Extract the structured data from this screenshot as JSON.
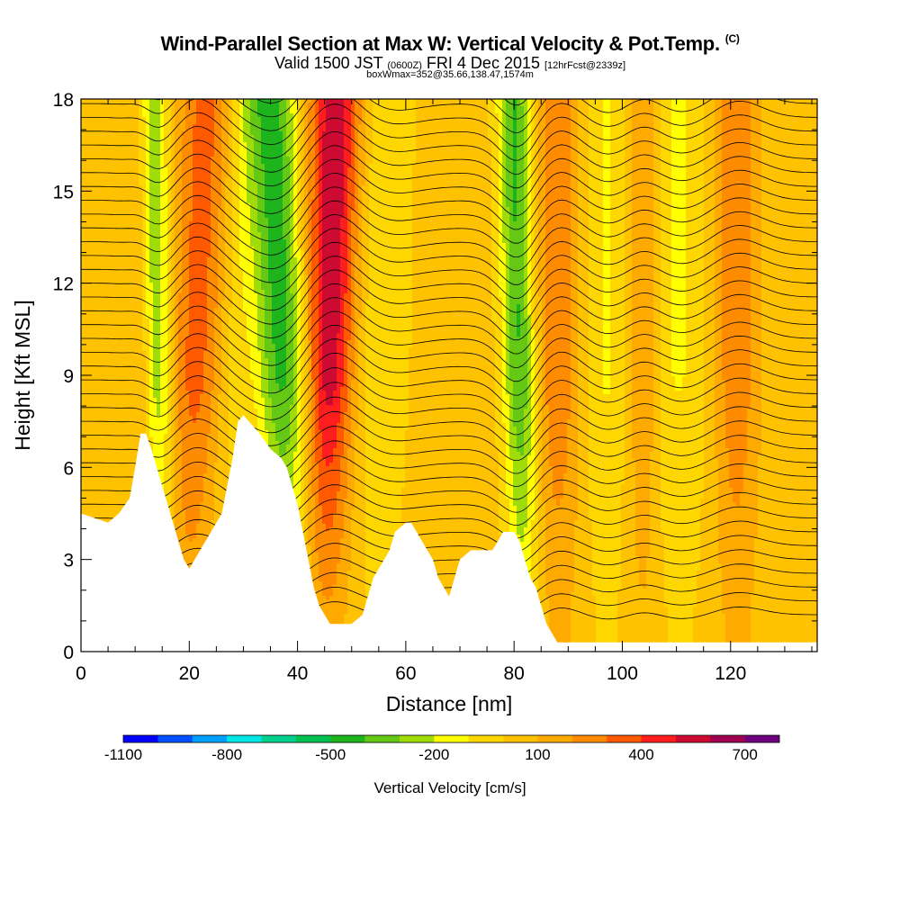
{
  "header": {
    "title_main": "Wind-Parallel Section at Max W: Vertical Velocity & Pot.Temp.",
    "title_copyright": "(C)",
    "valid_prefix": "Valid 1500 JST",
    "valid_utc": "(0600Z)",
    "valid_date": "FRI 4 Dec 2015",
    "forecast": "[12hrFcst@2339z]",
    "box_info": "boxWmax=352@35.66,138.47,1574m"
  },
  "chart_data": {
    "type": "heatmap",
    "title": "Wind-Parallel Section at Max W: Vertical Velocity & Pot.Temp.",
    "xlabel": "Distance [nm]",
    "ylabel": "Height [Kft MSL]",
    "xlim": [
      0,
      136
    ],
    "ylim": [
      0,
      18
    ],
    "x_ticks": [
      0,
      20,
      40,
      60,
      80,
      100,
      120
    ],
    "x_tick_labels": [
      "0",
      "20",
      "40",
      "60",
      "80",
      "100",
      "120"
    ],
    "y_ticks": [
      0,
      3,
      6,
      9,
      12,
      15,
      18
    ],
    "y_tick_labels": [
      "0",
      "3",
      "6",
      "9",
      "12",
      "15",
      "18"
    ],
    "terrain": {
      "description": "white terrain profile (height in Kft vs distance in nm)",
      "x": [
        0,
        5,
        7,
        9,
        10,
        11,
        12,
        13,
        14,
        15,
        16,
        17,
        18,
        19,
        20,
        21,
        22,
        23,
        24,
        25,
        26,
        27,
        28,
        29,
        30,
        31,
        33,
        35,
        37,
        38,
        39,
        40,
        41,
        42,
        43,
        44,
        45,
        46,
        48,
        50,
        52,
        53,
        54,
        55,
        56,
        57,
        58,
        60,
        61,
        62,
        63,
        64,
        65,
        66,
        67,
        68,
        69,
        70,
        72,
        74,
        76,
        78,
        80,
        81,
        82,
        83,
        84,
        85,
        86,
        87,
        88,
        89,
        90,
        95,
        100,
        110,
        120,
        130,
        136
      ],
      "y": [
        4.5,
        4.2,
        4.5,
        5.0,
        6.0,
        7.1,
        7.1,
        6.6,
        6.0,
        5.4,
        4.8,
        4.2,
        3.6,
        3.0,
        2.7,
        3.0,
        3.3,
        3.6,
        3.9,
        4.2,
        4.5,
        5.4,
        6.3,
        7.5,
        7.7,
        7.5,
        7.1,
        6.6,
        6.3,
        6.0,
        5.4,
        4.8,
        3.9,
        3.0,
        2.1,
        1.5,
        1.2,
        0.9,
        0.9,
        0.9,
        1.2,
        1.8,
        2.4,
        2.7,
        3.0,
        3.3,
        3.9,
        4.2,
        4.2,
        3.9,
        3.6,
        3.3,
        3.0,
        2.4,
        2.1,
        1.8,
        2.4,
        3.0,
        3.3,
        3.3,
        3.3,
        3.9,
        3.9,
        3.6,
        3.0,
        2.4,
        2.1,
        1.5,
        0.9,
        0.6,
        0.3,
        0.3,
        0.3,
        0.3,
        0.3,
        0.3,
        0.3,
        0.3,
        0.3
      ]
    },
    "velocity_bands": {
      "description": "approximate vertical velocity features (cm/s): center x (nm), width, peak value",
      "bands": [
        {
          "x_bottom": 15,
          "x_top": 13,
          "width": 3,
          "value": -350
        },
        {
          "x_bottom": 12,
          "x_top": 11,
          "width": 2,
          "value": 150
        },
        {
          "x_bottom": 19,
          "x_top": 23,
          "width": 5,
          "value": 300
        },
        {
          "x_bottom": 26,
          "x_top": 30,
          "width": 3,
          "value": -100
        },
        {
          "x_bottom": 40,
          "x_top": 35,
          "width": 5,
          "value": -500
        },
        {
          "x_bottom": 44,
          "x_top": 47,
          "width": 5,
          "value": 550
        },
        {
          "x_bottom": 54,
          "x_top": 56,
          "width": 5,
          "value": -150
        },
        {
          "x_bottom": 82,
          "x_top": 80,
          "width": 3,
          "value": -450
        },
        {
          "x_bottom": 88,
          "x_top": 88,
          "width": 4,
          "value": 250
        },
        {
          "x_bottom": 110,
          "x_top": 110,
          "width": 6,
          "value": -150
        },
        {
          "x_bottom": 104,
          "x_top": 104,
          "width": 3,
          "value": 200
        },
        {
          "x_bottom": 121,
          "x_top": 121,
          "width": 4,
          "value": 250
        },
        {
          "x_bottom": 97,
          "x_top": 97,
          "width": 4,
          "value": -150
        }
      ]
    },
    "colorbar": {
      "label": "Vertical Velocity [cm/s]",
      "tick_labels": [
        "-1100",
        "-800",
        "-500",
        "-200",
        "100",
        "400",
        "700"
      ],
      "colors": [
        "#0000ff",
        "#0050ff",
        "#00a0ff",
        "#00e6e6",
        "#00d08c",
        "#00c050",
        "#1eb41e",
        "#64c814",
        "#a0dc0a",
        "#ffff00",
        "#ffd700",
        "#ffc200",
        "#ffaa00",
        "#ff8c00",
        "#ff5a00",
        "#ff1e1e",
        "#cd0a32",
        "#a00050",
        "#6e007d"
      ]
    },
    "contour_labels_note": "potential temperature isentropes (black lines) with small illegible labels"
  }
}
